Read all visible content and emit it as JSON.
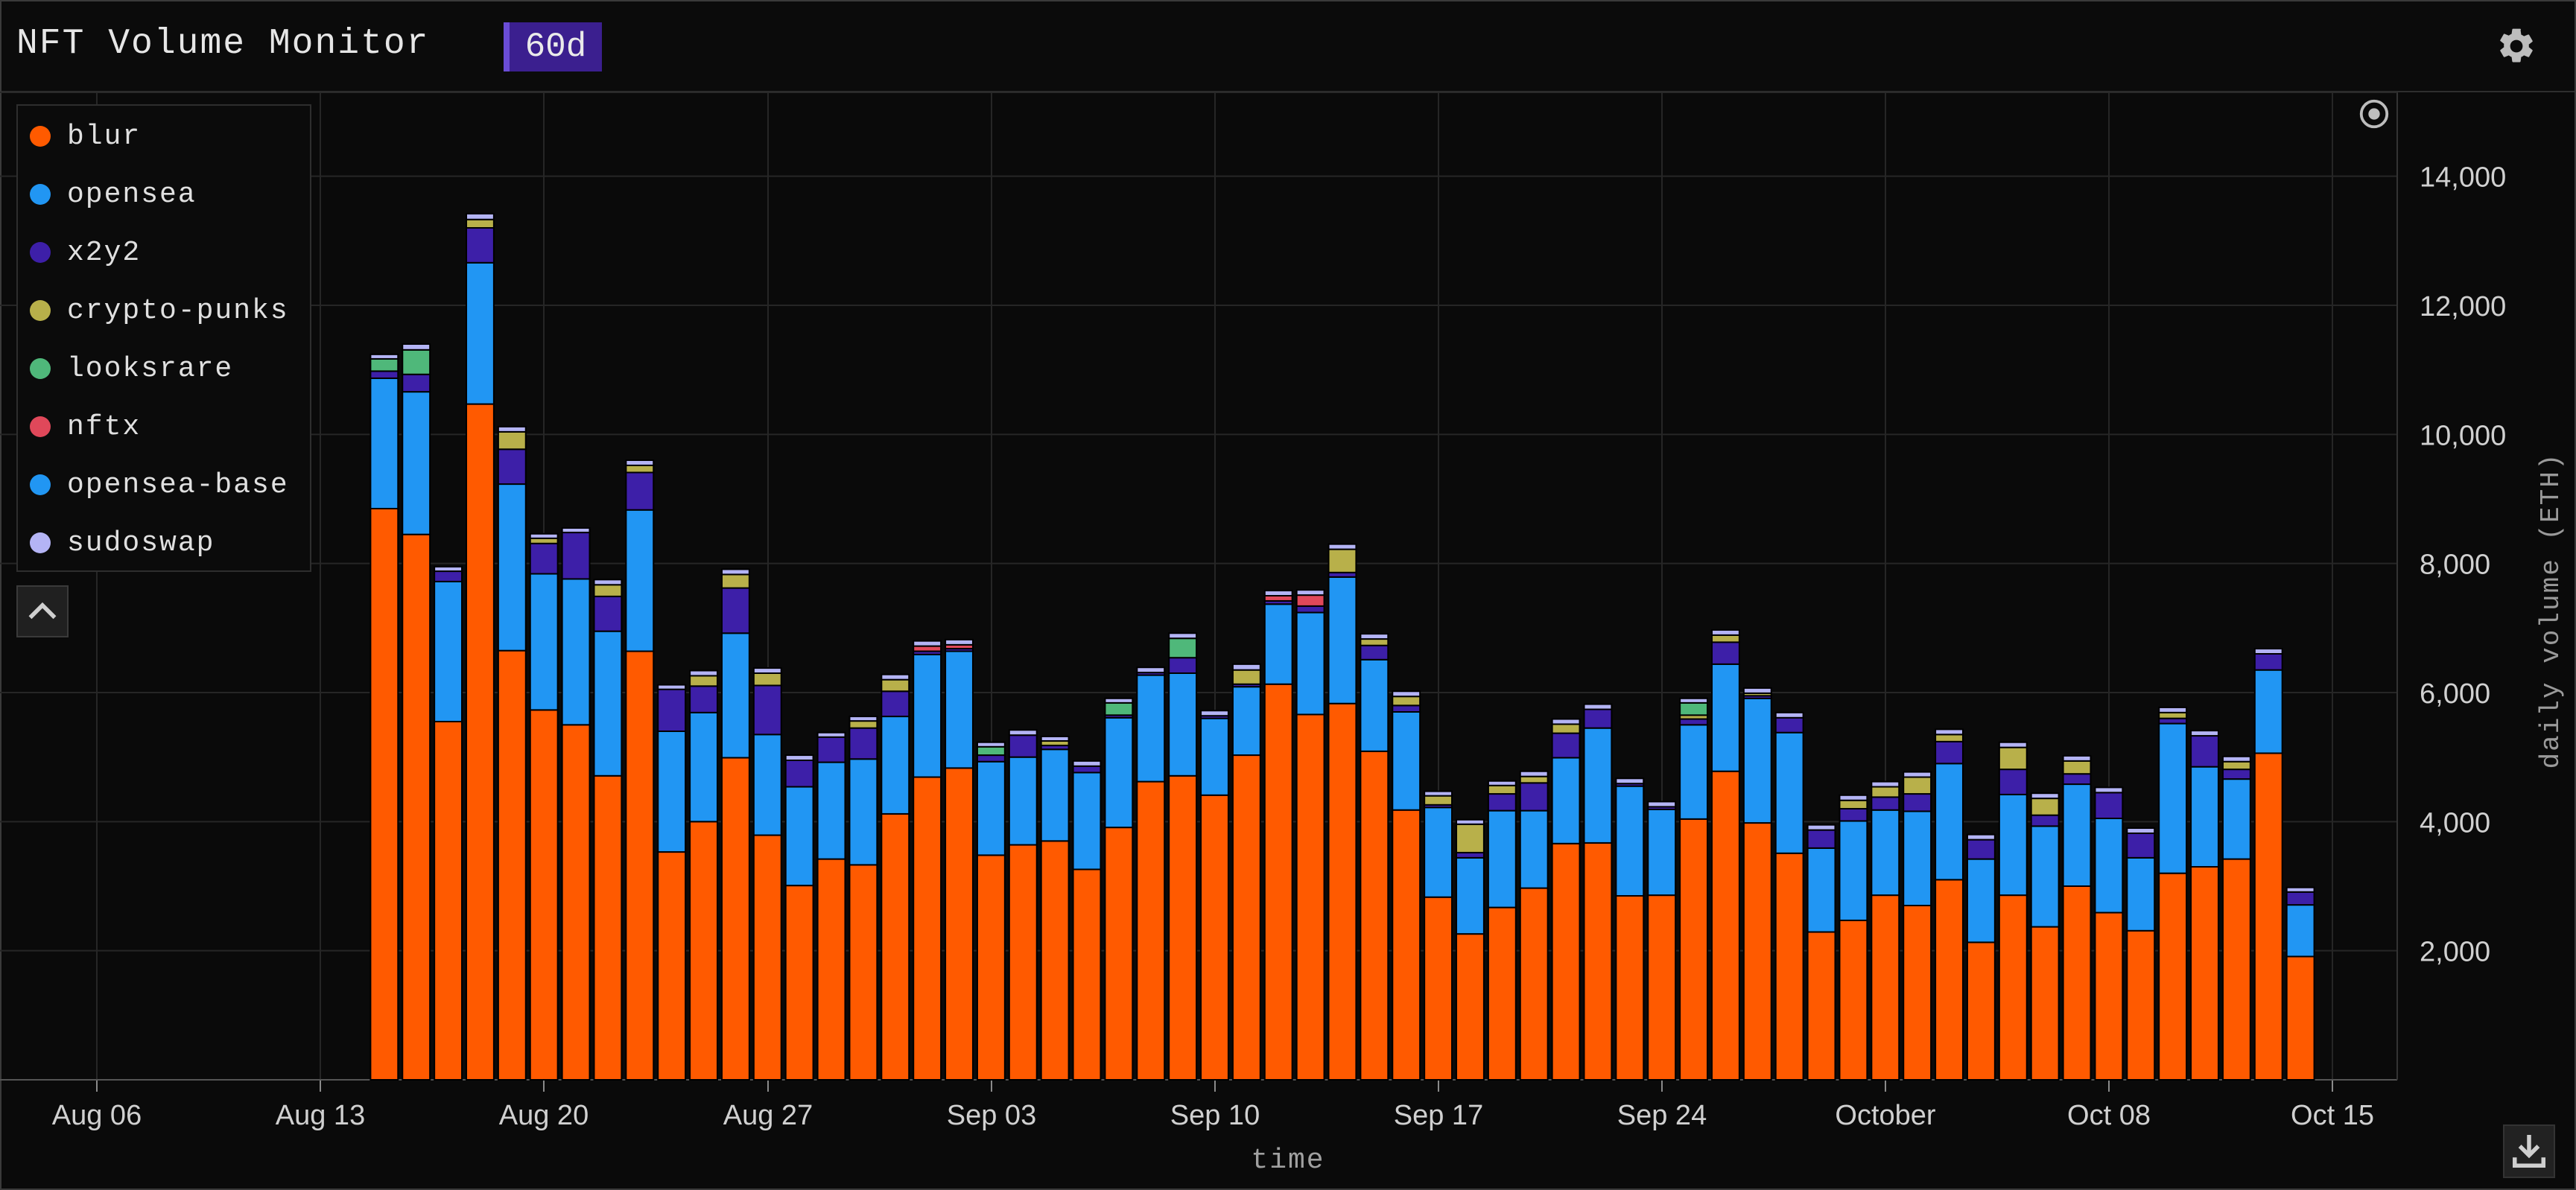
{
  "header": {
    "title": "NFT Volume Monitor",
    "range_badge": "60d"
  },
  "icons": {
    "settings": "gear-icon",
    "collapse": "chevron-up-icon",
    "download": "download-icon",
    "reset": "target-icon"
  },
  "chart_data": {
    "type": "bar",
    "stacked": true,
    "xlabel": "time",
    "ylabel": "daily volume (ETH)",
    "ylim": [
      0,
      15300
    ],
    "yticks": [
      2000,
      4000,
      6000,
      8000,
      10000,
      12000,
      14000
    ],
    "ytick_labels": [
      "2,000",
      "4,000",
      "6,000",
      "8,000",
      "10,000",
      "12,000",
      "14,000"
    ],
    "xtick_labels": [
      "Aug 06",
      "Aug 13",
      "Aug 20",
      "Aug 27",
      "Sep 03",
      "Sep 10",
      "Sep 17",
      "Sep 24",
      "October",
      "Oct 08",
      "Oct 15"
    ],
    "grid": true,
    "legend_placement": "top-left",
    "categories": [
      "Aug 15",
      "Aug 16",
      "Aug 17",
      "Aug 18",
      "Aug 19",
      "Aug 20",
      "Aug 21",
      "Aug 22",
      "Aug 23",
      "Aug 24",
      "Aug 25",
      "Aug 26",
      "Aug 27",
      "Aug 28",
      "Aug 29",
      "Aug 30",
      "Aug 31",
      "Sep 01",
      "Sep 02",
      "Sep 03",
      "Sep 04",
      "Sep 05",
      "Sep 06",
      "Sep 07",
      "Sep 08",
      "Sep 09",
      "Sep 10",
      "Sep 11",
      "Sep 12",
      "Sep 13",
      "Sep 14",
      "Sep 15",
      "Sep 16",
      "Sep 17",
      "Sep 18",
      "Sep 19",
      "Sep 20",
      "Sep 21",
      "Sep 22",
      "Sep 23",
      "Sep 24",
      "Sep 25",
      "Sep 26",
      "Sep 27",
      "Sep 28",
      "Sep 29",
      "Sep 30",
      "Oct 01",
      "Oct 02",
      "Oct 03",
      "Oct 04",
      "Oct 05",
      "Oct 06",
      "Oct 07",
      "Oct 08",
      "Oct 09",
      "Oct 10",
      "Oct 11",
      "Oct 12",
      "Oct 13",
      "Oct 14"
    ],
    "series": [
      {
        "name": "blur",
        "color": "#ff5a00",
        "values": [
          8850,
          8450,
          5550,
          10470,
          6650,
          5730,
          5500,
          4710,
          6640,
          3530,
          4000,
          4990,
          3790,
          3010,
          3420,
          3330,
          4120,
          4690,
          4830,
          3480,
          3640,
          3700,
          3260,
          3910,
          4620,
          4710,
          4410,
          5030,
          6130,
          5660,
          5830,
          5090,
          4180,
          2830,
          2260,
          2670,
          2970,
          3660,
          3670,
          2850,
          2860,
          4040,
          4780,
          3980,
          3510,
          2290,
          2470,
          2860,
          2700,
          3100,
          2130,
          2860,
          2370,
          3000,
          2590,
          2310,
          3200,
          3300,
          3420,
          5060,
          1910
        ]
      },
      {
        "name": "opensea",
        "color": "#2196f3",
        "values": [
          2020,
          2210,
          2170,
          2190,
          2580,
          2110,
          2260,
          2240,
          2190,
          1870,
          1690,
          1930,
          1560,
          1530,
          1500,
          1640,
          1510,
          1900,
          1810,
          1450,
          1360,
          1420,
          1500,
          1700,
          1650,
          1590,
          1190,
          1060,
          1240,
          1580,
          1960,
          1420,
          1520,
          1390,
          1180,
          1500,
          1200,
          1330,
          1780,
          1700,
          1330,
          1460,
          1660,
          1930,
          1870,
          1300,
          1540,
          1320,
          1460,
          1800,
          1290,
          1560,
          1560,
          1580,
          1460,
          1130,
          2320,
          1550,
          1240,
          1290,
          800
        ]
      },
      {
        "name": "x2y2",
        "color": "#3d1fa8",
        "values": [
          110,
          270,
          160,
          540,
          540,
          470,
          720,
          540,
          580,
          650,
          410,
          700,
          760,
          410,
          390,
          480,
          390,
          50,
          40,
          100,
          340,
          60,
          100,
          40,
          40,
          240,
          40,
          40,
          50,
          100,
          70,
          220,
          100,
          40,
          80,
          260,
          430,
          380,
          290,
          40,
          40,
          90,
          340,
          40,
          230,
          280,
          190,
          200,
          270,
          340,
          300,
          390,
          170,
          160,
          400,
          380,
          80,
          480,
          150,
          250,
          200
        ]
      },
      {
        "name": "crypto-punks",
        "color": "#b8b04a",
        "values": [
          0,
          0,
          0,
          130,
          270,
          80,
          0,
          180,
          110,
          0,
          160,
          210,
          190,
          0,
          0,
          110,
          180,
          0,
          0,
          0,
          0,
          70,
          0,
          0,
          0,
          0,
          0,
          220,
          0,
          0,
          360,
          100,
          140,
          140,
          440,
          130,
          100,
          140,
          0,
          0,
          0,
          60,
          110,
          40,
          0,
          0,
          130,
          160,
          260,
          110,
          0,
          340,
          260,
          200,
          0,
          0,
          90,
          0,
          120,
          0,
          0
        ]
      },
      {
        "name": "looksrare",
        "color": "#4fb87a",
        "values": [
          190,
          380,
          0,
          0,
          0,
          0,
          0,
          0,
          0,
          0,
          0,
          0,
          0,
          0,
          0,
          0,
          0,
          0,
          0,
          130,
          0,
          0,
          0,
          190,
          0,
          300,
          0,
          0,
          0,
          0,
          0,
          0,
          0,
          0,
          0,
          0,
          0,
          0,
          0,
          0,
          0,
          190,
          0,
          0,
          0,
          0,
          0,
          0,
          0,
          0,
          0,
          0,
          0,
          0,
          0,
          0,
          0,
          0,
          0,
          0,
          0
        ]
      },
      {
        "name": "nftx",
        "color": "#e0485a",
        "values": [
          0,
          0,
          0,
          0,
          0,
          0,
          0,
          0,
          0,
          0,
          0,
          0,
          0,
          0,
          0,
          0,
          0,
          80,
          60,
          0,
          0,
          0,
          0,
          0,
          0,
          0,
          0,
          0,
          80,
          170,
          0,
          0,
          0,
          0,
          0,
          0,
          0,
          0,
          0,
          0,
          0,
          0,
          0,
          0,
          0,
          0,
          0,
          0,
          0,
          0,
          0,
          0,
          0,
          0,
          0,
          0,
          0,
          0,
          0,
          0,
          0
        ]
      },
      {
        "name": "opensea-base",
        "color": "#2196f3",
        "values": [
          0,
          0,
          0,
          0,
          0,
          0,
          0,
          0,
          0,
          0,
          0,
          0,
          0,
          0,
          0,
          0,
          0,
          0,
          0,
          0,
          0,
          0,
          0,
          0,
          0,
          0,
          0,
          0,
          0,
          0,
          0,
          0,
          0,
          0,
          0,
          0,
          0,
          0,
          0,
          0,
          0,
          0,
          0,
          0,
          0,
          0,
          0,
          0,
          0,
          0,
          0,
          0,
          0,
          0,
          0,
          0,
          0,
          0,
          0,
          0,
          0
        ]
      },
      {
        "name": "sudoswap",
        "color": "#b4b4f5",
        "values": [
          70,
          90,
          70,
          90,
          80,
          70,
          70,
          80,
          80,
          70,
          80,
          80,
          80,
          80,
          70,
          70,
          80,
          80,
          80,
          70,
          80,
          70,
          80,
          70,
          80,
          80,
          80,
          90,
          80,
          80,
          80,
          80,
          80,
          70,
          70,
          70,
          80,
          80,
          80,
          80,
          80,
          70,
          80,
          80,
          80,
          80,
          80,
          80,
          80,
          80,
          80,
          80,
          80,
          80,
          80,
          80,
          80,
          80,
          80,
          80,
          70
        ]
      }
    ]
  }
}
